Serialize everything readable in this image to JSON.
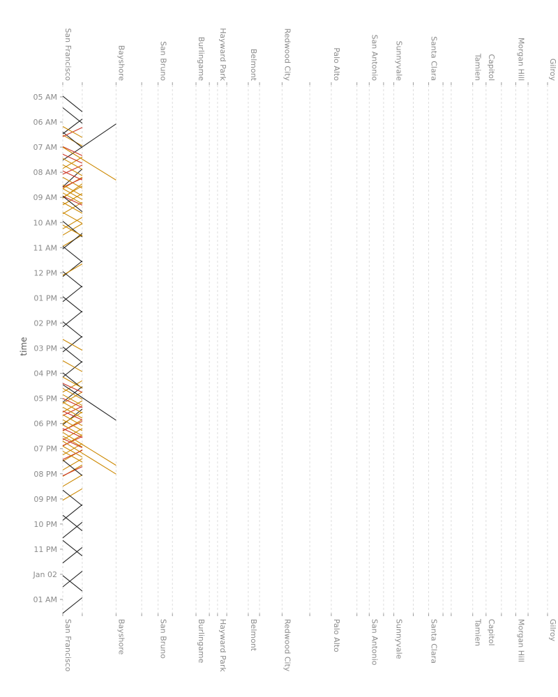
{
  "chart_data": {
    "type": "line",
    "ylabel": "time",
    "y_axis": {
      "ticks": [
        "05 AM",
        "06 AM",
        "07 AM",
        "08 AM",
        "09 AM",
        "10 AM",
        "11 AM",
        "12 PM",
        "01 PM",
        "02 PM",
        "03 PM",
        "04 PM",
        "05 PM",
        "06 PM",
        "07 PM",
        "08 PM",
        "09 PM",
        "10 PM",
        "11 PM",
        "Jan 02",
        "01 AM"
      ],
      "range_hours": [
        4.7,
        25.55
      ]
    },
    "stations": [
      {
        "name": "San Francisco",
        "mile": 0.0
      },
      {
        "name": "",
        "mile": 1.9
      },
      {
        "name": "Bayshore",
        "mile": 5.2
      },
      {
        "name": "",
        "mile": 7.7
      },
      {
        "name": "San Bruno",
        "mile": 9.3
      },
      {
        "name": "",
        "mile": 10.7
      },
      {
        "name": "Burlingame",
        "mile": 13.0
      },
      {
        "name": "",
        "mile": 14.3
      },
      {
        "name": "Hayward Park",
        "mile": 15.1
      },
      {
        "name": "",
        "mile": 16.0
      },
      {
        "name": "Belmont",
        "mile": 18.1
      },
      {
        "name": "",
        "mile": 19.2
      },
      {
        "name": "Redwood City",
        "mile": 21.4
      },
      {
        "name": "",
        "mile": 24.1
      },
      {
        "name": "Palo Alto",
        "mile": 26.2
      },
      {
        "name": "",
        "mile": 28.7
      },
      {
        "name": "San Antonio",
        "mile": 29.9
      },
      {
        "name": "",
        "mile": 31.3
      },
      {
        "name": "Sunnyvale",
        "mile": 32.3
      },
      {
        "name": "",
        "mile": 34.2
      },
      {
        "name": "Santa Clara",
        "mile": 35.7
      },
      {
        "name": "",
        "mile": 37.1
      },
      {
        "name": "",
        "mile": 37.9
      },
      {
        "name": "Tamien",
        "mile": 40.0
      },
      {
        "name": "Capitol",
        "mile": 41.3
      },
      {
        "name": "",
        "mile": 42.8
      },
      {
        "name": "Morgan Hill",
        "mile": 44.2
      },
      {
        "name": "",
        "mile": 45.4
      },
      {
        "name": "Gilroy",
        "mile": 47.3
      }
    ],
    "service_colors": {
      "local": "#222222",
      "limited": "#cc8800",
      "bullet": "#cc3322"
    },
    "trains": [
      {
        "type": "local",
        "dir": "S",
        "start": 4.97,
        "end": 4.6,
        "dur": 1.5
      },
      {
        "type": "local",
        "dir": "N",
        "start": 6.02,
        "end": 5.4,
        "dur": 1.5
      },
      {
        "type": "local",
        "dir": "S",
        "start": 5.43,
        "end": 4.6,
        "dur": 1.5
      },
      {
        "type": "local",
        "dir": "N",
        "start": 5.0,
        "end": 4.75,
        "dur": 1.47
      },
      {
        "type": "limited",
        "dir": "S",
        "start": 6.52,
        "end": 4.6,
        "dur": 1.05
      },
      {
        "type": "limited",
        "dir": "N",
        "start": 6.75,
        "end": 4.6,
        "dur": 1.1
      },
      {
        "type": "local",
        "dir": "S",
        "start": 6.4,
        "end": 4.6,
        "dur": 1.5
      },
      {
        "type": "local",
        "dir": "N",
        "start": 7.08,
        "end": 4.0,
        "dur": 1.5
      },
      {
        "type": "bullet",
        "dir": "N",
        "start": 5.7,
        "end": 4.6,
        "dur": 0.88
      },
      {
        "type": "limited",
        "dir": "S",
        "start": 6.18,
        "end": 4.6,
        "dur": 1.05
      },
      {
        "type": "bullet",
        "dir": "S",
        "start": 6.98,
        "end": 4.6,
        "dur": 0.87
      },
      {
        "type": "limited",
        "dir": "N",
        "start": 7.83,
        "end": 4.0,
        "dur": 1.2
      },
      {
        "type": "limited",
        "dir": "S",
        "start": 7.0,
        "end": 7.33,
        "dur": 1.85
      },
      {
        "type": "limited",
        "dir": "N",
        "start": 7.55,
        "end": 4.6,
        "dur": 1.1
      },
      {
        "type": "bullet",
        "dir": "S",
        "start": 7.28,
        "end": 4.6,
        "dur": 0.87
      },
      {
        "type": "limited",
        "dir": "S",
        "start": 7.7,
        "end": 4.6,
        "dur": 1.05
      },
      {
        "type": "bullet",
        "dir": "N",
        "start": 7.2,
        "end": 4.6,
        "dur": 0.88
      },
      {
        "type": "limited",
        "dir": "S",
        "start": 7.45,
        "end": 4.6,
        "dur": 1.05
      },
      {
        "type": "limited",
        "dir": "N",
        "start": 7.9,
        "end": 4.6,
        "dur": 1.1
      },
      {
        "type": "bullet",
        "dir": "S",
        "start": 7.95,
        "end": 4.6,
        "dur": 0.87
      },
      {
        "type": "limited",
        "dir": "N",
        "start": 8.2,
        "end": 4.6,
        "dur": 1.1
      },
      {
        "type": "limited",
        "dir": "S",
        "start": 8.2,
        "end": 4.6,
        "dur": 1.05
      },
      {
        "type": "bullet",
        "dir": "N",
        "start": 7.72,
        "end": 4.6,
        "dur": 0.88
      },
      {
        "type": "limited",
        "dir": "S",
        "start": 8.5,
        "end": 4.6,
        "dur": 1.05
      },
      {
        "type": "limited",
        "dir": "N",
        "start": 8.55,
        "end": 4.6,
        "dur": 1.1
      },
      {
        "type": "limited",
        "dir": "S",
        "start": 8.65,
        "end": 4.6,
        "dur": 1.05
      },
      {
        "type": "bullet",
        "dir": "S",
        "start": 8.95,
        "end": 4.6,
        "dur": 0.87
      },
      {
        "type": "limited",
        "dir": "N",
        "start": 9.15,
        "end": 4.6,
        "dur": 1.1
      },
      {
        "type": "limited",
        "dir": "S",
        "start": 8.82,
        "end": 4.6,
        "dur": 1.05
      },
      {
        "type": "limited",
        "dir": "N",
        "start": 9.4,
        "end": 4.6,
        "dur": 1.1
      },
      {
        "type": "local",
        "dir": "S",
        "start": 8.95,
        "end": 4.6,
        "dur": 1.5
      },
      {
        "type": "limited",
        "dir": "S",
        "start": 9.2,
        "end": 4.6,
        "dur": 1.05
      },
      {
        "type": "limited",
        "dir": "N",
        "start": 9.85,
        "end": 4.6,
        "dur": 1.1
      },
      {
        "type": "local",
        "dir": "N",
        "start": 9.55,
        "end": 4.6,
        "dur": 1.5
      },
      {
        "type": "limited",
        "dir": "S",
        "start": 9.6,
        "end": 4.6,
        "dur": 1.05
      },
      {
        "type": "local",
        "dir": "S",
        "start": 9.95,
        "end": 4.6,
        "dur": 1.5
      },
      {
        "type": "local",
        "dir": "N",
        "start": 10.65,
        "end": 4.6,
        "dur": 1.5
      },
      {
        "type": "limited",
        "dir": "S",
        "start": 10.1,
        "end": 4.6,
        "dur": 1.05
      },
      {
        "type": "local",
        "dir": "S",
        "start": 10.95,
        "end": 4.6,
        "dur": 1.5
      },
      {
        "type": "limited",
        "dir": "N",
        "start": 11.0,
        "end": 4.6,
        "dur": 1.1
      },
      {
        "type": "local",
        "dir": "N",
        "start": 11.65,
        "end": 4.6,
        "dur": 1.5
      },
      {
        "type": "local",
        "dir": "S",
        "start": 11.95,
        "end": 4.6,
        "dur": 1.5
      },
      {
        "type": "local",
        "dir": "N",
        "start": 12.65,
        "end": 4.6,
        "dur": 1.5
      },
      {
        "type": "local",
        "dir": "S",
        "start": 12.95,
        "end": 4.6,
        "dur": 1.5
      },
      {
        "type": "local",
        "dir": "N",
        "start": 13.65,
        "end": 4.6,
        "dur": 1.5
      },
      {
        "type": "local",
        "dir": "S",
        "start": 13.95,
        "end": 4.6,
        "dur": 1.5
      },
      {
        "type": "local",
        "dir": "N",
        "start": 14.65,
        "end": 4.6,
        "dur": 1.5
      },
      {
        "type": "local",
        "dir": "S",
        "start": 14.95,
        "end": 4.6,
        "dur": 1.5
      },
      {
        "type": "local",
        "dir": "N",
        "start": 15.65,
        "end": 4.6,
        "dur": 1.5
      },
      {
        "type": "limited",
        "dir": "S",
        "start": 14.65,
        "end": 4.6,
        "dur": 1.05
      },
      {
        "type": "limited",
        "dir": "N",
        "start": 15.65,
        "end": 4.6,
        "dur": 1.1
      },
      {
        "type": "limited",
        "dir": "S",
        "start": 15.5,
        "end": 4.6,
        "dur": 1.05
      },
      {
        "type": "local",
        "dir": "S",
        "start": 15.98,
        "end": 4.6,
        "dur": 1.5
      },
      {
        "type": "limited",
        "dir": "N",
        "start": 16.1,
        "end": 4.6,
        "dur": 1.1
      },
      {
        "type": "limited",
        "dir": "S",
        "start": 16.15,
        "end": 4.6,
        "dur": 1.05
      },
      {
        "type": "local",
        "dir": "N",
        "start": 16.55,
        "end": 4.6,
        "dur": 1.5
      },
      {
        "type": "bullet",
        "dir": "S",
        "start": 16.4,
        "end": 4.6,
        "dur": 0.87
      },
      {
        "type": "local",
        "dir": "S",
        "start": 16.45,
        "end": 7.33,
        "dur": 2.0
      },
      {
        "type": "limited",
        "dir": "N",
        "start": 16.45,
        "end": 4.6,
        "dur": 1.1
      },
      {
        "type": "limited",
        "dir": "S",
        "start": 16.6,
        "end": 4.6,
        "dur": 1.05
      },
      {
        "type": "bullet",
        "dir": "N",
        "start": 16.8,
        "end": 4.6,
        "dur": 0.88
      },
      {
        "type": "limited",
        "dir": "S",
        "start": 16.85,
        "end": 4.6,
        "dur": 1.05
      },
      {
        "type": "limited",
        "dir": "N",
        "start": 16.9,
        "end": 4.6,
        "dur": 1.1
      },
      {
        "type": "bullet",
        "dir": "S",
        "start": 17.0,
        "end": 4.6,
        "dur": 0.87
      },
      {
        "type": "limited",
        "dir": "S",
        "start": 17.15,
        "end": 4.6,
        "dur": 1.05
      },
      {
        "type": "limited",
        "dir": "N",
        "start": 17.2,
        "end": 4.6,
        "dur": 1.1
      },
      {
        "type": "bullet",
        "dir": "N",
        "start": 17.4,
        "end": 4.6,
        "dur": 0.88
      },
      {
        "type": "limited",
        "dir": "S",
        "start": 17.35,
        "end": 4.6,
        "dur": 1.05
      },
      {
        "type": "limited",
        "dir": "N",
        "start": 17.55,
        "end": 4.6,
        "dur": 1.1
      },
      {
        "type": "bullet",
        "dir": "S",
        "start": 17.5,
        "end": 4.6,
        "dur": 0.87
      },
      {
        "type": "limited",
        "dir": "S",
        "start": 17.65,
        "end": 4.6,
        "dur": 1.05
      },
      {
        "type": "limited",
        "dir": "N",
        "start": 17.8,
        "end": 4.6,
        "dur": 1.1
      },
      {
        "type": "limited",
        "dir": "S",
        "start": 17.85,
        "end": 4.6,
        "dur": 1.05
      },
      {
        "type": "bullet",
        "dir": "N",
        "start": 18.0,
        "end": 4.6,
        "dur": 0.88
      },
      {
        "type": "limited",
        "dir": "S",
        "start": 18.05,
        "end": 4.6,
        "dur": 1.05
      },
      {
        "type": "limited",
        "dir": "N",
        "start": 18.15,
        "end": 4.6,
        "dur": 1.1
      },
      {
        "type": "bullet",
        "dir": "S",
        "start": 18.2,
        "end": 4.6,
        "dur": 0.87
      },
      {
        "type": "limited",
        "dir": "S",
        "start": 18.35,
        "end": 7.33,
        "dur": 1.85
      },
      {
        "type": "limited",
        "dir": "N",
        "start": 18.4,
        "end": 4.6,
        "dur": 1.1
      },
      {
        "type": "bullet",
        "dir": "N",
        "start": 18.55,
        "end": 4.6,
        "dur": 0.88
      },
      {
        "type": "limited",
        "dir": "S",
        "start": 18.5,
        "end": 4.6,
        "dur": 1.05
      },
      {
        "type": "limited",
        "dir": "N",
        "start": 18.75,
        "end": 4.6,
        "dur": 1.1
      },
      {
        "type": "bullet",
        "dir": "S",
        "start": 18.6,
        "end": 4.6,
        "dur": 0.87
      },
      {
        "type": "limited",
        "dir": "S",
        "start": 18.7,
        "end": 7.33,
        "dur": 1.85
      },
      {
        "type": "limited",
        "dir": "N",
        "start": 19.0,
        "end": 4.6,
        "dur": 1.1
      },
      {
        "type": "bullet",
        "dir": "N",
        "start": 19.2,
        "end": 4.6,
        "dur": 0.88
      },
      {
        "type": "limited",
        "dir": "S",
        "start": 18.9,
        "end": 4.6,
        "dur": 1.05
      },
      {
        "type": "limited",
        "dir": "N",
        "start": 19.4,
        "end": 4.6,
        "dur": 1.1
      },
      {
        "type": "limited",
        "dir": "S",
        "start": 19.1,
        "end": 4.6,
        "dur": 1.05
      },
      {
        "type": "local",
        "dir": "S",
        "start": 19.45,
        "end": 4.6,
        "dur": 1.5
      },
      {
        "type": "limited",
        "dir": "N",
        "start": 19.95,
        "end": 4.6,
        "dur": 1.1
      },
      {
        "type": "local",
        "dir": "N",
        "start": 20.35,
        "end": 4.6,
        "dur": 1.5
      },
      {
        "type": "local",
        "dir": "S",
        "start": 20.65,
        "end": 4.6,
        "dur": 1.5
      },
      {
        "type": "local",
        "dir": "N",
        "start": 21.05,
        "end": 4.6,
        "dur": 1.5
      },
      {
        "type": "local",
        "dir": "S",
        "start": 21.65,
        "end": 4.6,
        "dur": 1.5
      },
      {
        "type": "local",
        "dir": "N",
        "start": 22.05,
        "end": 4.6,
        "dur": 1.5
      },
      {
        "type": "local",
        "dir": "S",
        "start": 22.65,
        "end": 4.6,
        "dur": 1.5
      },
      {
        "type": "local",
        "dir": "N",
        "start": 24.05,
        "end": 4.6,
        "dur": 1.5
      },
      {
        "type": "local",
        "dir": "S",
        "start": 24.05,
        "end": 4.6,
        "dur": 1.5
      },
      {
        "type": "local",
        "dir": "N",
        "start": 23.0,
        "end": 4.6,
        "dur": 1.5
      }
    ]
  }
}
